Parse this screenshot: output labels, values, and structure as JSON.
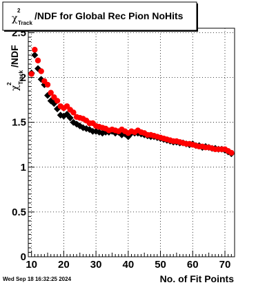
{
  "title": {
    "symbol": "χ",
    "superscript": "2",
    "subscript": "Track",
    "text": "/NDF for Global Rec Pion NoHits"
  },
  "ylabel": {
    "symbol": "χ",
    "superscript": "2",
    "subscript": "Track",
    "text": "/NDF"
  },
  "xlabel": "No. of Fit Points",
  "timestamp": "Wed Sep 18 16:32:25 2024",
  "chart_data": {
    "type": "scatter",
    "xlim": [
      9,
      73
    ],
    "ylim": [
      0,
      2.55
    ],
    "x_ticks": [
      "10",
      "20",
      "30",
      "40",
      "50",
      "60",
      "70"
    ],
    "y_ticks": [
      "0",
      "0.5",
      "1",
      "1.5",
      "2",
      "2.5"
    ],
    "grid": true,
    "series": [
      {
        "color": "#000000",
        "marker": "diamond",
        "x": [
          10,
          11,
          12,
          13,
          14,
          15,
          16,
          17,
          18,
          19,
          20,
          21,
          22,
          23,
          24,
          25,
          26,
          27,
          28,
          29,
          30,
          31,
          32,
          33,
          34,
          35,
          36,
          37,
          38,
          39,
          40,
          41,
          42,
          43,
          44,
          45,
          46,
          47,
          48,
          49,
          50,
          51,
          52,
          53,
          54,
          55,
          56,
          57,
          58,
          59,
          60,
          61,
          62,
          63,
          64,
          65,
          66,
          67,
          68,
          69,
          70,
          71,
          72
        ],
        "y": [
          2.05,
          2.25,
          2.1,
          1.98,
          1.92,
          1.8,
          1.74,
          1.71,
          1.65,
          1.58,
          1.57,
          1.59,
          1.55,
          1.5,
          1.48,
          1.46,
          1.44,
          1.43,
          1.42,
          1.4,
          1.4,
          1.39,
          1.38,
          1.39,
          1.39,
          1.4,
          1.38,
          1.39,
          1.36,
          1.37,
          1.34,
          1.38,
          1.38,
          1.38,
          1.37,
          1.36,
          1.35,
          1.34,
          1.34,
          1.33,
          1.32,
          1.31,
          1.3,
          1.29,
          1.28,
          1.28,
          1.27,
          1.27,
          1.26,
          1.25,
          1.26,
          1.24,
          1.24,
          1.22,
          1.23,
          1.22,
          1.21,
          1.21,
          1.2,
          1.2,
          1.19,
          1.17,
          1.15
        ]
      },
      {
        "color": "#ff0000",
        "marker": "circle",
        "x": [
          10,
          11,
          12,
          13,
          14,
          15,
          16,
          17,
          18,
          19,
          20,
          21,
          22,
          23,
          24,
          25,
          26,
          27,
          28,
          29,
          30,
          31,
          32,
          33,
          34,
          35,
          36,
          37,
          38,
          39,
          40,
          41,
          42,
          43,
          44,
          45,
          46,
          47,
          48,
          49,
          50,
          51,
          52,
          53,
          54,
          55,
          56,
          57,
          58,
          59,
          60,
          61,
          62,
          63,
          64,
          65,
          66,
          67,
          68,
          69,
          70,
          71,
          72
        ],
        "y": [
          2.04,
          2.31,
          2.19,
          2.07,
          1.96,
          1.92,
          1.83,
          1.78,
          1.74,
          1.68,
          1.66,
          1.68,
          1.64,
          1.61,
          1.56,
          1.55,
          1.54,
          1.52,
          1.49,
          1.49,
          1.46,
          1.45,
          1.44,
          1.43,
          1.41,
          1.42,
          1.41,
          1.4,
          1.42,
          1.4,
          1.38,
          1.4,
          1.39,
          1.41,
          1.39,
          1.38,
          1.36,
          1.36,
          1.35,
          1.34,
          1.33,
          1.32,
          1.31,
          1.3,
          1.29,
          1.29,
          1.28,
          1.27,
          1.26,
          1.26,
          1.25,
          1.24,
          1.23,
          1.23,
          1.22,
          1.22,
          1.21,
          1.2,
          1.2,
          1.2,
          1.2,
          1.18,
          1.16
        ]
      }
    ]
  }
}
